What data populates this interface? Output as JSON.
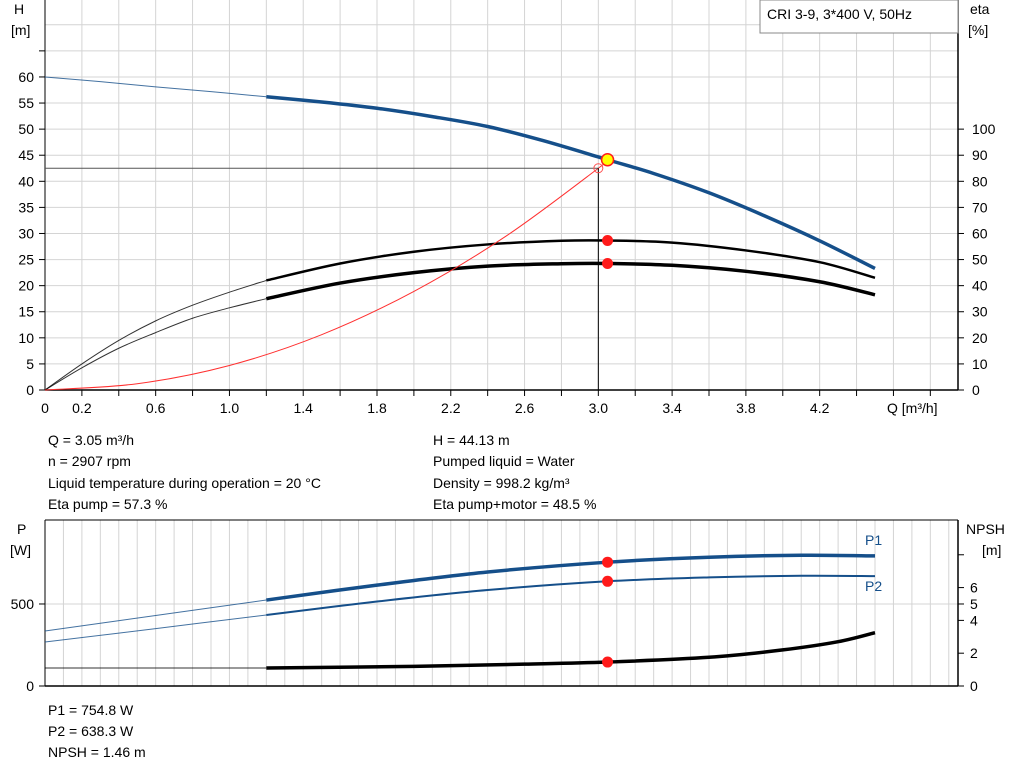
{
  "legend_box": "CRI 3-9, 3*400 V, 50Hz",
  "colors": {
    "head": "#154f8a",
    "efficiency": "#000000",
    "system": "#ff3030",
    "marker": "#ff1a1a",
    "duty": "#ffff00",
    "power": "#154f8a",
    "npsh": "#000000"
  },
  "chart_data": [
    {
      "type": "line",
      "xlabel": "Q [m³/h]",
      "ylabel": "H",
      "ylabel_unit": "[m]",
      "y2label": "eta",
      "y2label_unit": "[%]",
      "xlim": [
        0,
        4.95
      ],
      "ylim": [
        0,
        74.75
      ],
      "y2lim": [
        0,
        149.5
      ],
      "grid": true,
      "x_ticks": [
        "0",
        "0.2",
        "0.6",
        "1.0",
        "1.4",
        "1.8",
        "2.2",
        "2.6",
        "3.0",
        "3.4",
        "3.8",
        "4.2"
      ],
      "y_ticks": [
        "0",
        "5",
        "10",
        "15",
        "20",
        "25",
        "30",
        "35",
        "40",
        "45",
        "50",
        "55",
        "60"
      ],
      "y2_ticks": [
        "0",
        "10",
        "20",
        "30",
        "40",
        "50",
        "60",
        "70",
        "80",
        "90",
        "100"
      ],
      "series": [
        {
          "id": "head",
          "axis": "y",
          "color": "#154f8a",
          "thick_from": 1.2,
          "x": [
            0,
            0.3,
            0.6,
            0.9,
            1.2,
            1.5,
            1.8,
            2.1,
            2.4,
            2.7,
            3.05,
            3.3,
            3.6,
            3.9,
            4.2,
            4.5
          ],
          "y": [
            60,
            59.1,
            58.1,
            57.2,
            56.2,
            55.2,
            54,
            52.4,
            50.5,
            47.8,
            44.13,
            41.5,
            37.8,
            33.4,
            28.6,
            23.3
          ]
        },
        {
          "id": "eta-pump",
          "axis": "y2",
          "color": "#000000",
          "thick_from": 1.2,
          "x": [
            0,
            0.2,
            0.4,
            0.6,
            0.8,
            1.0,
            1.2,
            1.6,
            2.0,
            2.4,
            2.8,
            3.05,
            3.4,
            3.8,
            4.2,
            4.5
          ],
          "y": [
            0,
            10,
            19,
            26.5,
            32.5,
            37.5,
            42,
            48.5,
            53,
            55.8,
            57.2,
            57.3,
            56.5,
            53.5,
            49,
            43
          ]
        },
        {
          "id": "eta-pump-motor",
          "axis": "y2",
          "color": "#000000",
          "thick_from": 1.2,
          "x": [
            0,
            0.2,
            0.4,
            0.6,
            0.8,
            1.0,
            1.2,
            1.6,
            2.0,
            2.4,
            2.8,
            3.05,
            3.4,
            3.8,
            4.2,
            4.5
          ],
          "y": [
            0,
            8.5,
            16,
            22,
            27.5,
            31.5,
            35,
            41,
            45,
            47.5,
            48.4,
            48.5,
            47.8,
            45.5,
            41.5,
            36.5
          ]
        },
        {
          "id": "system-curve",
          "axis": "y",
          "color": "#ff3030",
          "x": [
            0,
            0.5,
            1.0,
            1.5,
            2.0,
            2.5,
            3.0,
            3.05
          ],
          "y": [
            0,
            1.2,
            4.7,
            10.6,
            18.9,
            29.5,
            42.5,
            44.13
          ]
        }
      ],
      "duty_point": {
        "Q": 3.05,
        "H": 44.13,
        "eta_pump": 57.3,
        "eta_pump_motor": 48.5
      },
      "requested_point": {
        "Q": 3.0,
        "H": 42.5
      }
    },
    {
      "type": "line",
      "ylabel": "P",
      "ylabel_unit": "[W]",
      "y2label": "NPSH",
      "y2label_unit": "[m]",
      "xlim": [
        0,
        4.95
      ],
      "ylim": [
        0,
        1012
      ],
      "y2lim": [
        0,
        10.12
      ],
      "grid": true,
      "y_ticks": [
        "0",
        "500"
      ],
      "y2_ticks": [
        "0",
        "2",
        "4",
        "5",
        "6"
      ],
      "series": [
        {
          "id": "P1",
          "name": "P1",
          "axis": "y",
          "color": "#154f8a",
          "thick_from": 1.2,
          "width": 3.5,
          "x": [
            0,
            0.6,
            1.2,
            1.8,
            2.4,
            3.05,
            3.6,
            4.1,
            4.5
          ],
          "y": [
            335,
            430,
            524,
            615,
            695,
            754.8,
            785,
            797,
            793
          ]
        },
        {
          "id": "P2",
          "name": "P2",
          "axis": "y",
          "color": "#154f8a",
          "thick_from": 1.2,
          "width": 2,
          "x": [
            0,
            0.6,
            1.2,
            1.8,
            2.4,
            3.05,
            3.6,
            4.1,
            4.5
          ],
          "y": [
            268,
            350,
            433,
            515,
            585,
            638.3,
            662,
            672,
            670
          ]
        },
        {
          "id": "NPSH",
          "axis": "y2",
          "color": "#000000",
          "thick_from": 1.2,
          "width": 3.5,
          "x": [
            0,
            1.2,
            2.0,
            2.6,
            3.05,
            3.6,
            4.0,
            4.3,
            4.5
          ],
          "y": [
            1.1,
            1.1,
            1.2,
            1.33,
            1.46,
            1.75,
            2.2,
            2.7,
            3.25
          ]
        }
      ],
      "duty_point": {
        "Q": 3.05,
        "P1": 754.8,
        "P2": 638.3,
        "NPSH": 1.46
      }
    }
  ],
  "info_left": [
    "Q = 3.05 m³/h",
    "n = 2907 rpm",
    "Liquid temperature during operation = 20 °C",
    "Eta pump = 57.3 %"
  ],
  "info_right": [
    "H = 44.13 m",
    "Pumped liquid = Water",
    "Density = 998.2 kg/m³",
    "Eta pump+motor = 48.5 %"
  ],
  "info_bottom": [
    "P1 = 754.8 W",
    "P2 = 638.3 W",
    "NPSH = 1.46 m"
  ]
}
